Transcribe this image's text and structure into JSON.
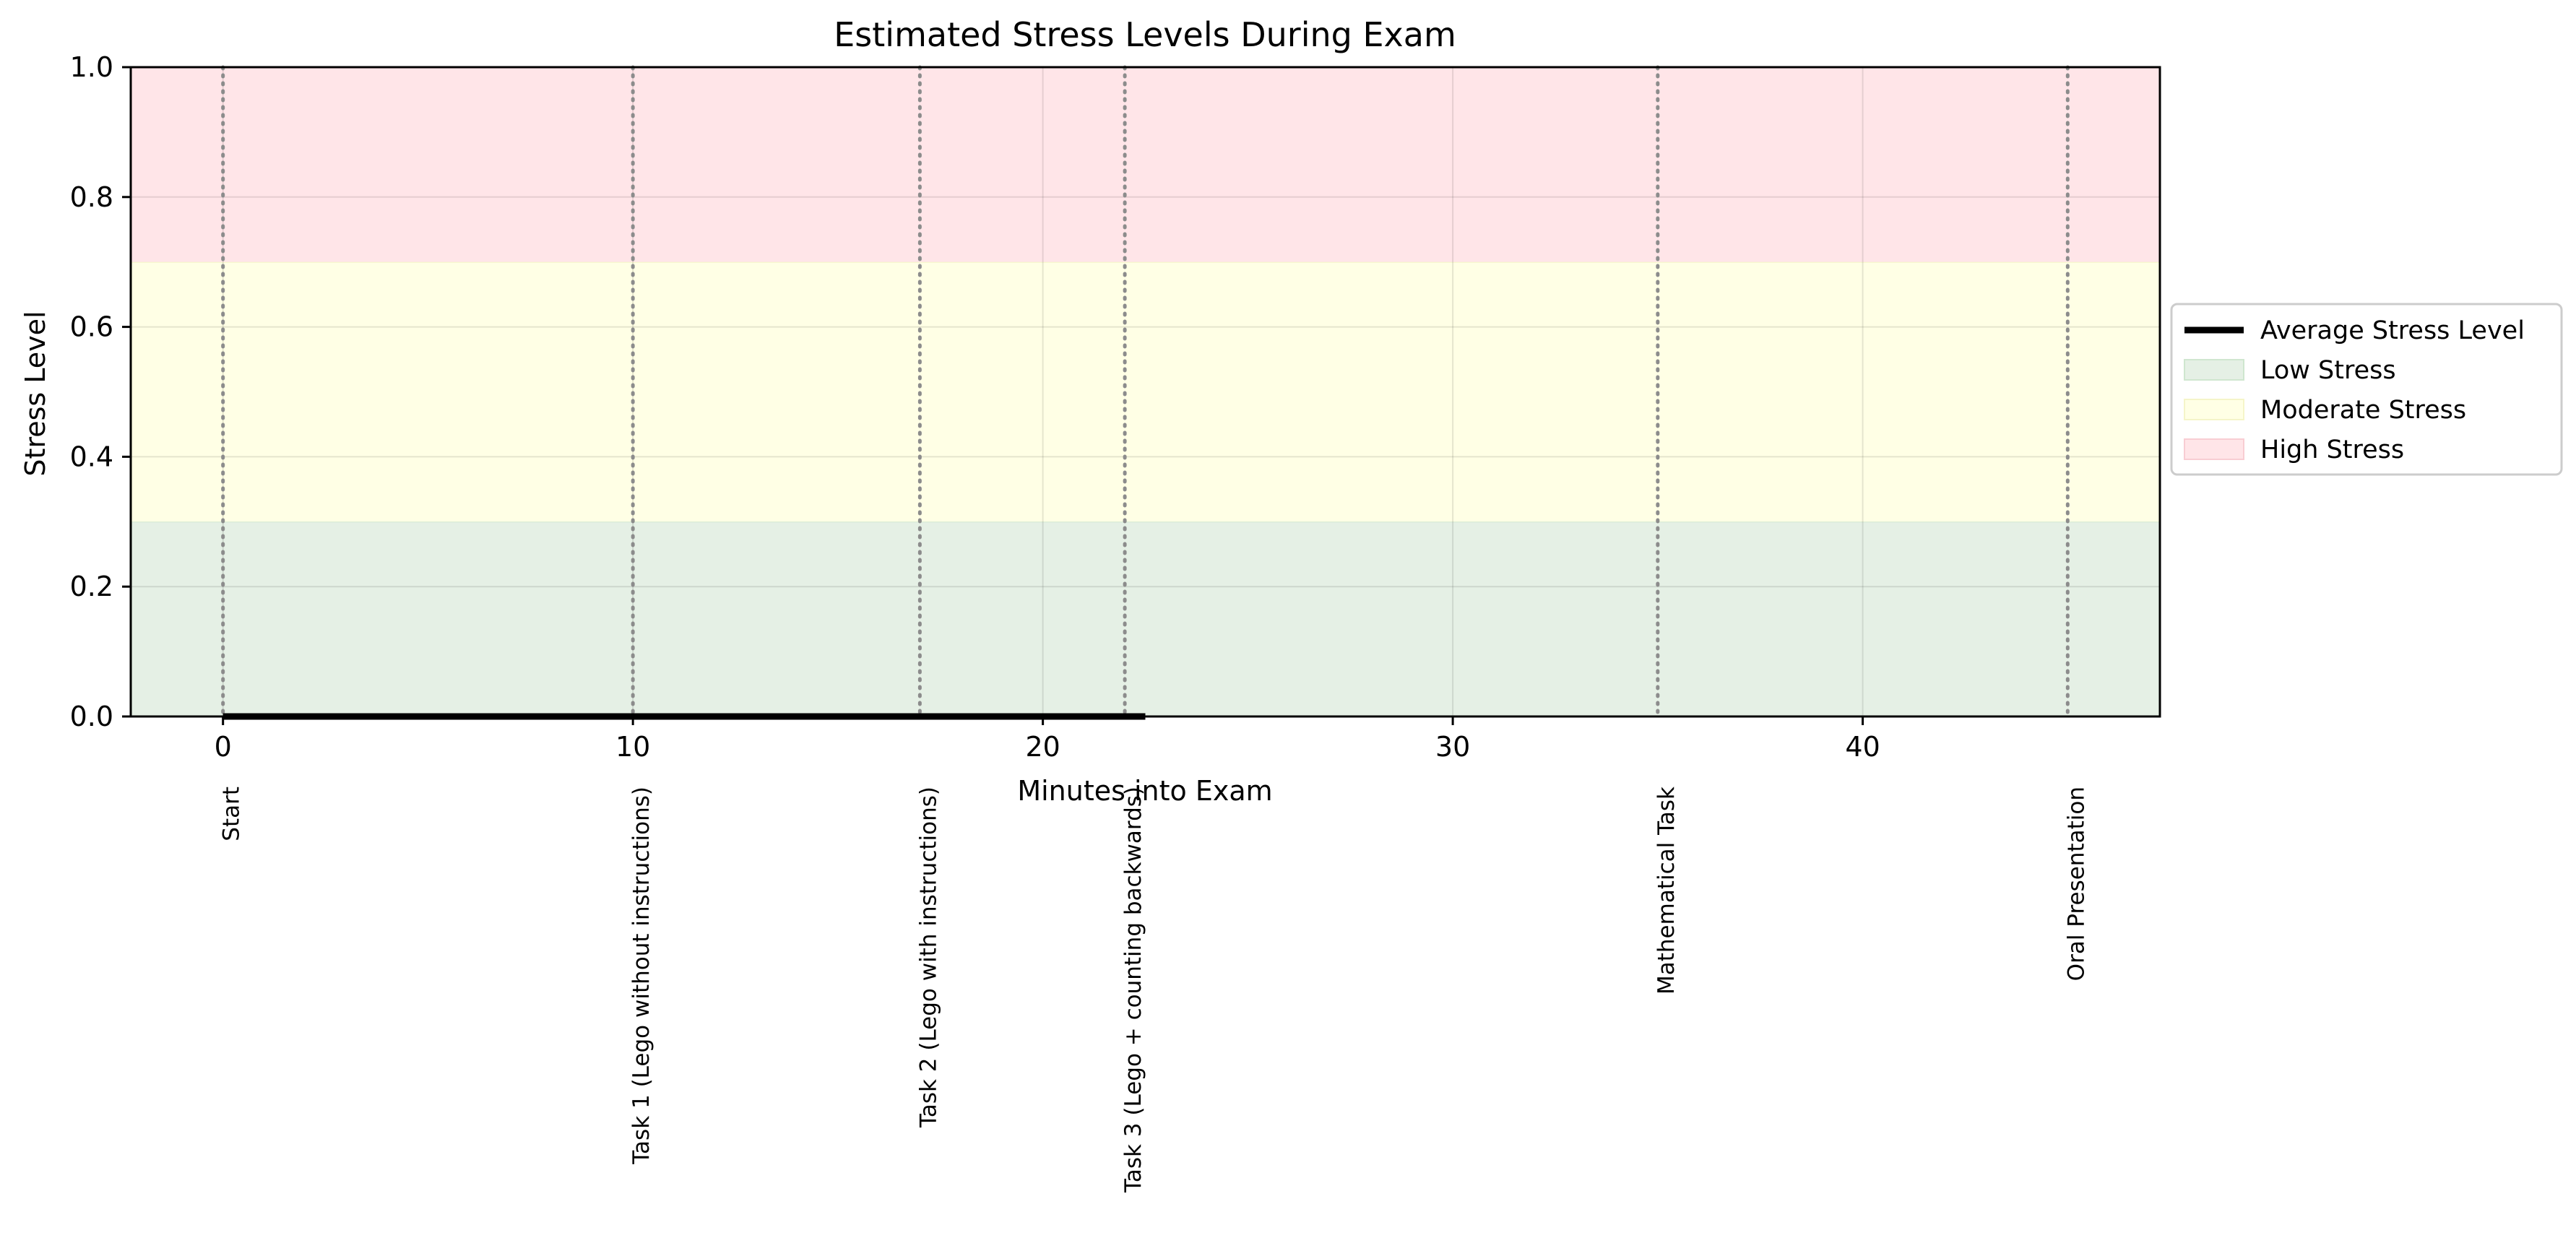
{
  "chart_data": {
    "type": "line",
    "title": "Estimated Stress Levels During Exam",
    "xlabel": "Minutes into Exam",
    "ylabel": "Stress Level",
    "xlim": [
      -2.25,
      47.25
    ],
    "ylim": [
      0.0,
      1.0
    ],
    "x_ticks": [
      0,
      10,
      20,
      30,
      40
    ],
    "x_tick_labels": [
      "0",
      "10",
      "20",
      "30",
      "40"
    ],
    "y_ticks": [
      0.0,
      0.2,
      0.4,
      0.6,
      0.8,
      1.0
    ],
    "y_tick_labels": [
      "0.0",
      "0.2",
      "0.4",
      "0.6",
      "0.8",
      "1.0"
    ],
    "grid": true,
    "legend_position": "center-right outside plot",
    "series": [
      {
        "name": "Average Stress Level",
        "color": "#000000",
        "x": [
          0,
          22.5
        ],
        "y": [
          0.0,
          0.0
        ]
      }
    ],
    "bands": [
      {
        "name": "Low Stress",
        "from": 0.0,
        "to": 0.3,
        "color": "#e5f0e5",
        "edge": "#cfe6cf"
      },
      {
        "name": "Moderate Stress",
        "from": 0.3,
        "to": 0.7,
        "color": "#ffffe5",
        "edge": "#f5f5c9"
      },
      {
        "name": "High Stress",
        "from": 0.7,
        "to": 1.0,
        "color": "#ffe5e8",
        "edge": "#f8cdd3"
      }
    ],
    "events": [
      {
        "x": 0,
        "label": "Start"
      },
      {
        "x": 10,
        "label": "Task 1 (Lego without instructions)"
      },
      {
        "x": 17,
        "label": "Task 2 (Lego with instructions)"
      },
      {
        "x": 22,
        "label": "Task 3 (Lego + counting backwards)"
      },
      {
        "x": 35,
        "label": "Mathematical Task"
      },
      {
        "x": 45,
        "label": "Oral Presentation"
      }
    ],
    "event_line_color": "#8c8c8c"
  }
}
